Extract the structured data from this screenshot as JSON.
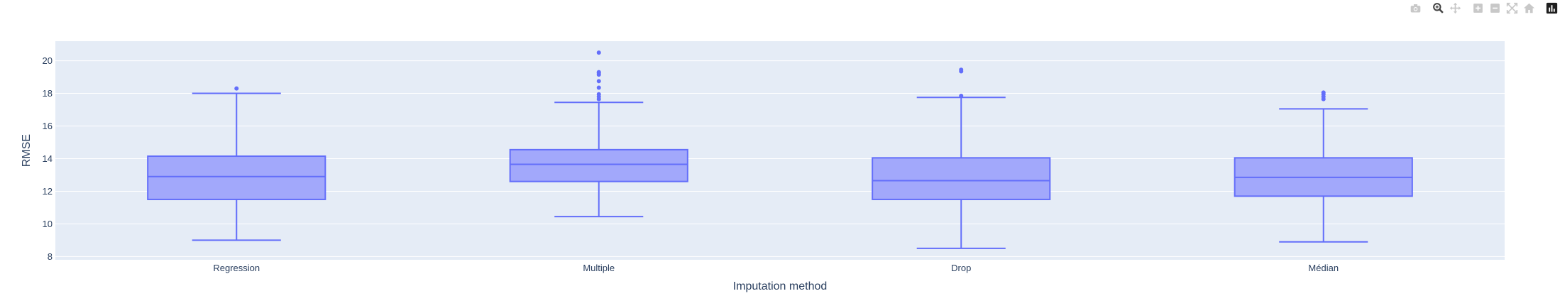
{
  "toolbar": {
    "icons": [
      "camera-icon",
      "zoom-icon",
      "pan-icon",
      "zoom-in-icon",
      "zoom-out-icon",
      "autoscale-icon",
      "reset-axes-icon",
      "plotly-logo-icon"
    ],
    "inactive_color": "#c8c8c8",
    "active_color": "#444444"
  },
  "colors": {
    "plot_bg": "#e5ecf6",
    "grid": "#ffffff",
    "box_line": "#636efa",
    "box_fill": "#a2a8fb"
  },
  "chart_data": {
    "type": "box",
    "xlabel": "Imputation method",
    "ylabel": "RMSE",
    "ylim": [
      7.8,
      21.2
    ],
    "yticks": [
      8,
      10,
      12,
      14,
      16,
      18,
      20
    ],
    "grid": true,
    "categories": [
      "Regression",
      "Multiple",
      "Drop",
      "Médian"
    ],
    "boxes": [
      {
        "category": "Regression",
        "lower_fence": 9.0,
        "q1": 11.5,
        "median": 12.9,
        "q3": 14.15,
        "upper_fence": 18.0,
        "outliers": [
          18.3
        ]
      },
      {
        "category": "Multiple",
        "lower_fence": 10.45,
        "q1": 12.6,
        "median": 13.65,
        "q3": 14.55,
        "upper_fence": 17.45,
        "outliers": [
          17.65,
          17.8,
          17.95,
          18.35,
          18.75,
          19.15,
          19.25,
          19.3,
          20.5
        ]
      },
      {
        "category": "Drop",
        "lower_fence": 8.5,
        "q1": 11.5,
        "median": 12.65,
        "q3": 14.05,
        "upper_fence": 17.75,
        "outliers": [
          17.85,
          19.35,
          19.45
        ]
      },
      {
        "category": "Médian",
        "lower_fence": 8.9,
        "q1": 11.7,
        "median": 12.85,
        "q3": 14.05,
        "upper_fence": 17.05,
        "outliers": [
          17.65,
          17.8,
          17.95,
          18.05
        ]
      }
    ]
  }
}
